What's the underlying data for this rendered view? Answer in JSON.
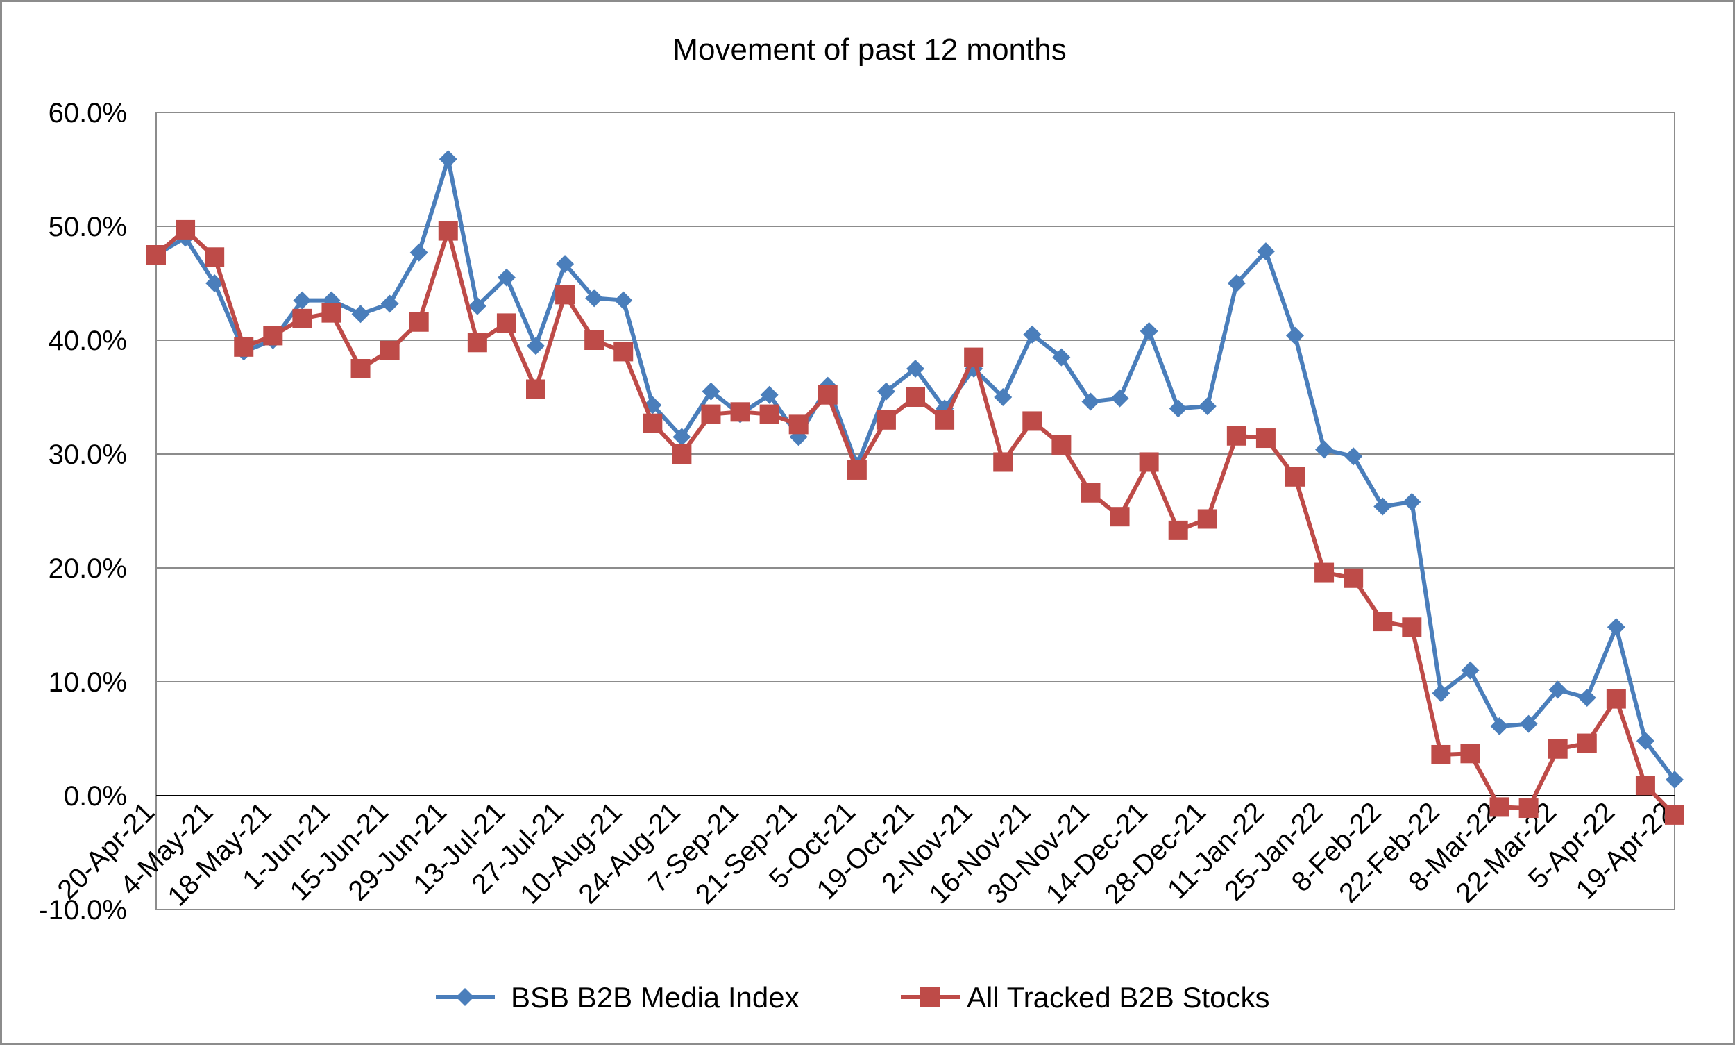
{
  "chart_data": {
    "type": "line",
    "title": "Movement of past 12 months",
    "xlabel": "",
    "ylabel": "",
    "ylim": [
      -10,
      60
    ],
    "yticks": [
      60,
      50,
      40,
      30,
      20,
      10,
      0,
      -10
    ],
    "ytick_labels": [
      "60.0%",
      "50.0%",
      "40.0%",
      "30.0%",
      "20.0%",
      "10.0%",
      "0.0%",
      "-10.0%"
    ],
    "grid": true,
    "legend_position": "bottom",
    "xtick_labels": [
      "20-Apr-21",
      "4-May-21",
      "18-May-21",
      "1-Jun-21",
      "15-Jun-21",
      "29-Jun-21",
      "13-Jul-21",
      "27-Jul-21",
      "10-Aug-21",
      "24-Aug-21",
      "7-Sep-21",
      "21-Sep-21",
      "5-Oct-21",
      "19-Oct-21",
      "2-Nov-21",
      "16-Nov-21",
      "30-Nov-21",
      "14-Dec-21",
      "28-Dec-21",
      "11-Jan-22",
      "25-Jan-22",
      "8-Feb-22",
      "22-Feb-22",
      "8-Mar-22",
      "22-Mar-22",
      "5-Apr-22",
      "19-Apr-22"
    ],
    "point_count": 53,
    "series": [
      {
        "name": "BSB B2B Media Index",
        "color": "#4a7ebb",
        "marker": "diamond",
        "values": [
          47.5,
          49.0,
          45.0,
          39.0,
          40.0,
          43.5,
          43.5,
          42.3,
          43.2,
          47.7,
          55.9,
          43.0,
          45.5,
          39.5,
          46.7,
          43.7,
          43.5,
          34.3,
          31.5,
          35.5,
          33.5,
          35.2,
          31.5,
          36.0,
          29.0,
          35.5,
          37.5,
          34.0,
          37.5,
          35.0,
          40.5,
          38.5,
          34.6,
          34.9,
          40.8,
          34.0,
          34.2,
          45.0,
          47.8,
          40.4,
          30.4,
          29.8,
          25.4,
          25.8,
          9.0,
          11.0,
          6.1,
          6.3,
          9.3,
          8.6,
          14.8,
          4.8,
          1.4
        ]
      },
      {
        "name": "All Tracked B2B Stocks",
        "color": "#be4b48",
        "marker": "square",
        "values": [
          47.5,
          49.7,
          47.3,
          39.4,
          40.4,
          41.9,
          42.4,
          37.5,
          39.1,
          41.6,
          49.6,
          39.8,
          41.5,
          35.7,
          44.0,
          40.0,
          39.0,
          32.7,
          30.0,
          33.5,
          33.7,
          33.5,
          32.6,
          35.2,
          28.6,
          33.0,
          35.0,
          33.0,
          38.5,
          29.3,
          32.9,
          30.8,
          26.6,
          24.5,
          29.3,
          23.3,
          24.3,
          31.6,
          31.4,
          28.0,
          19.6,
          19.1,
          15.3,
          14.8,
          3.6,
          3.7,
          -1.0,
          -1.1,
          4.1,
          4.6,
          8.5,
          0.9,
          -1.7
        ]
      }
    ]
  }
}
